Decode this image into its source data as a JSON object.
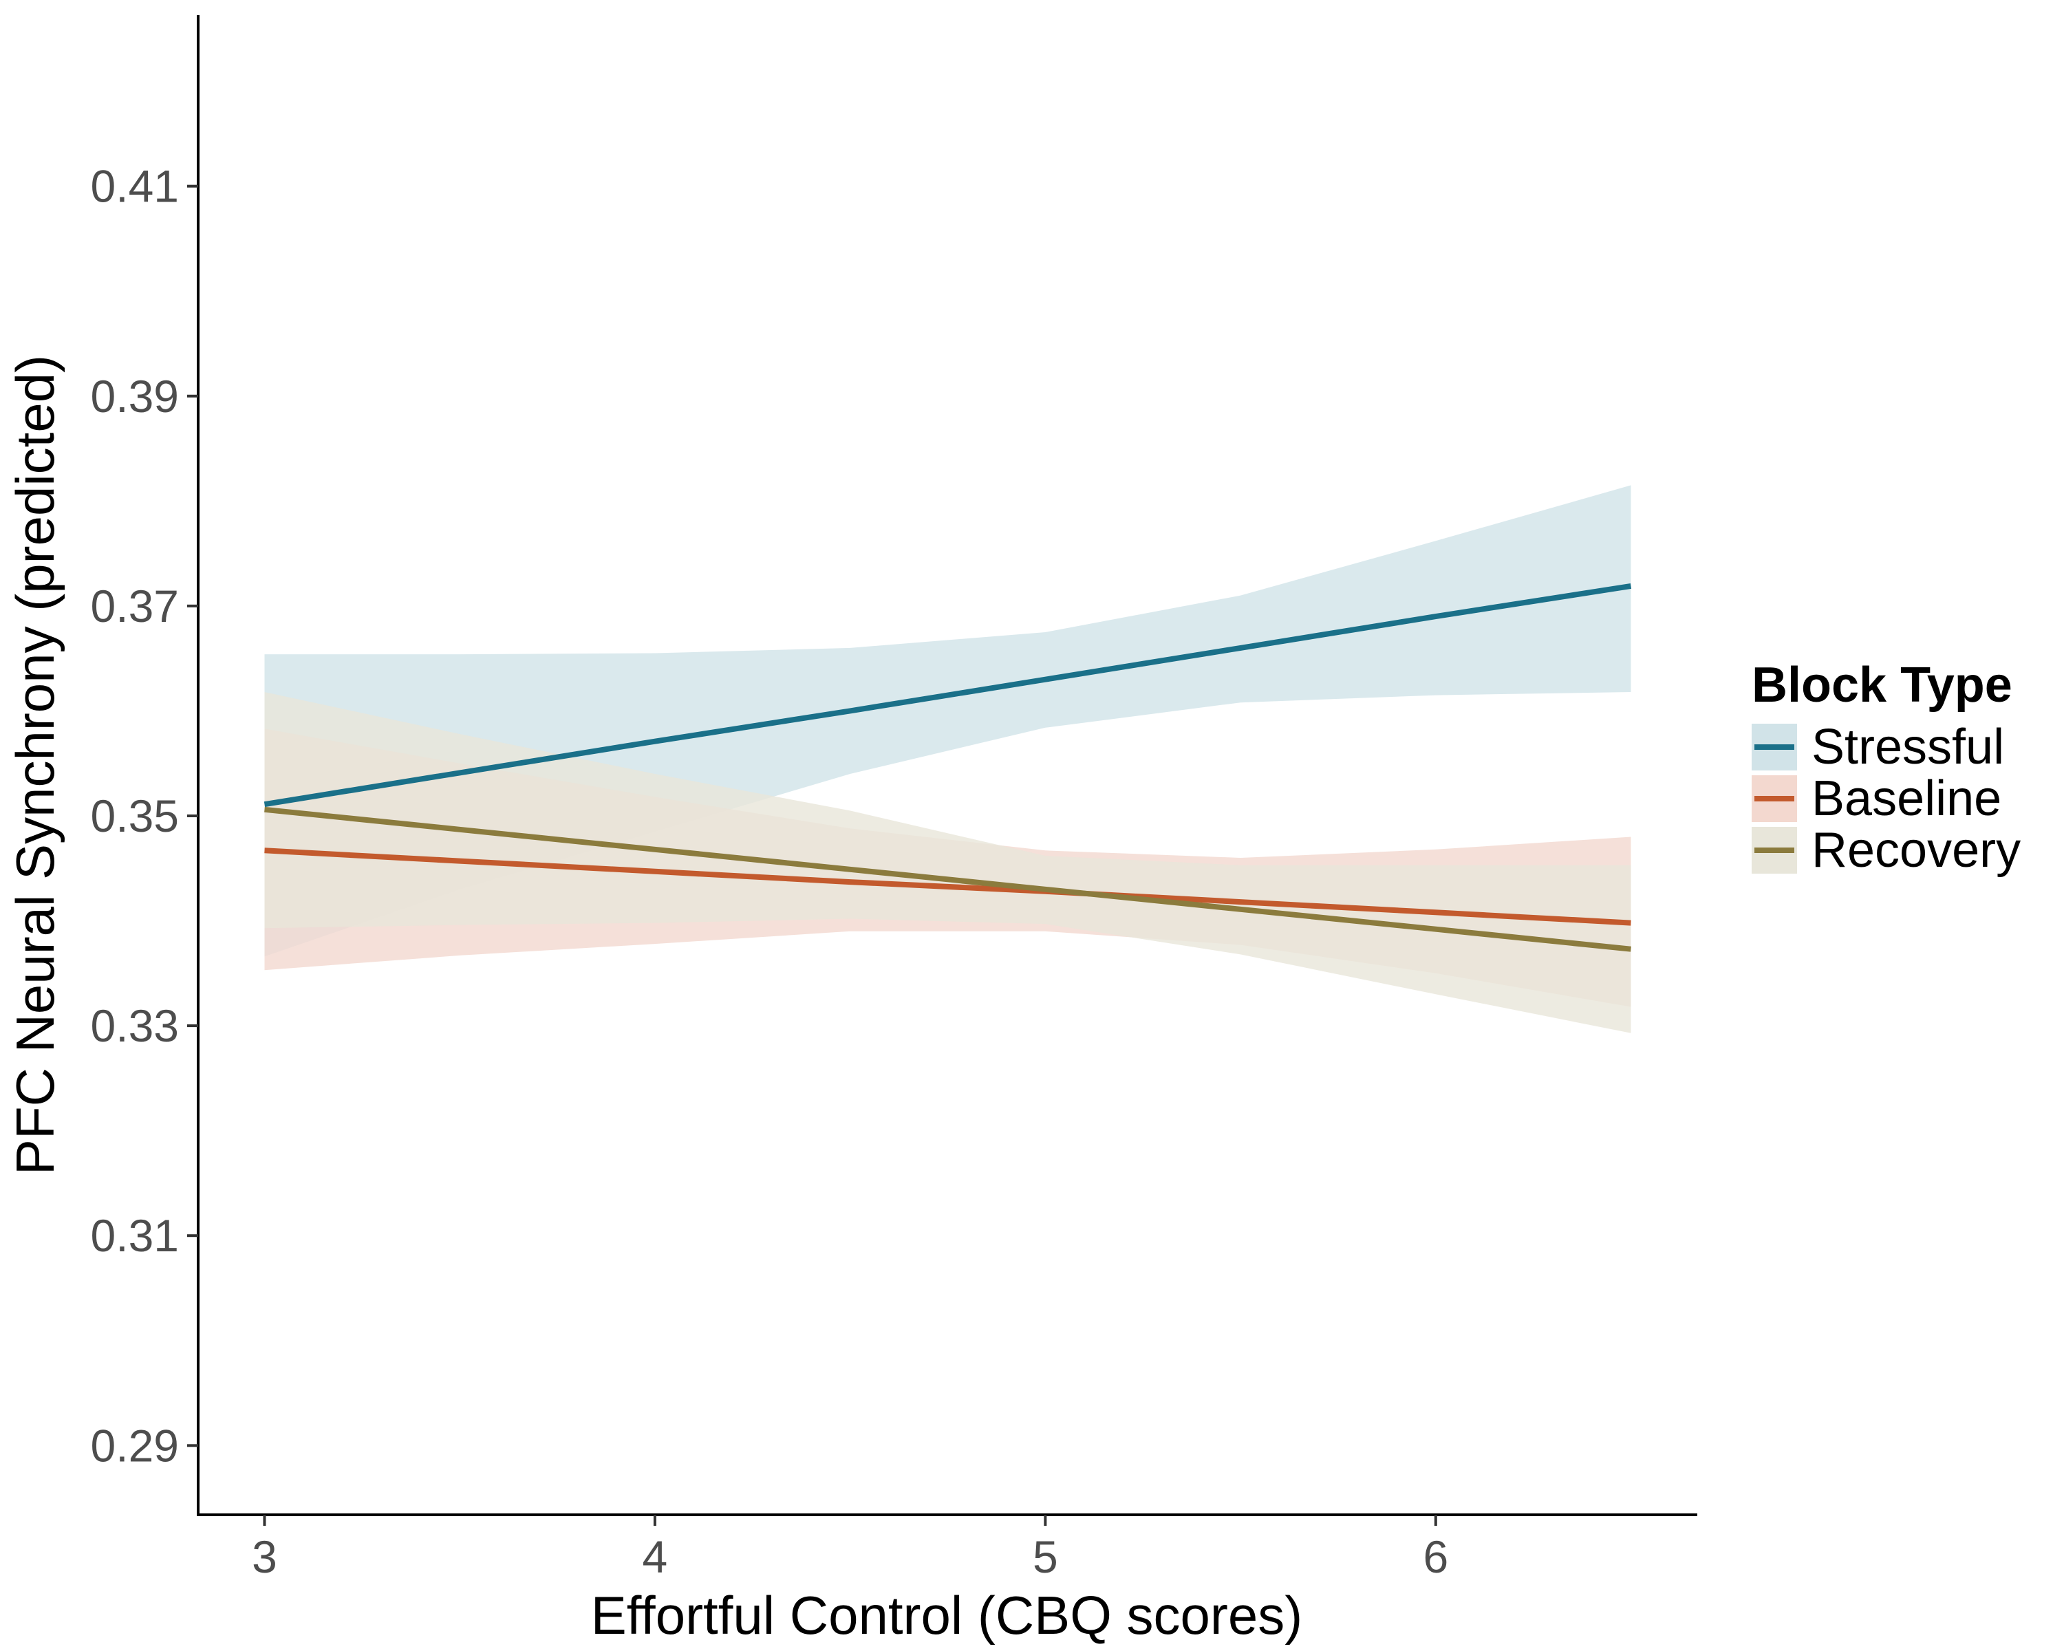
{
  "chart_data": {
    "type": "line",
    "title": "",
    "xlabel": "Effortful Control (CBQ scores)",
    "ylabel": "PFC Neural Synchrony (predicted)",
    "xlim": [
      2.83,
      6.67
    ],
    "ylim": [
      0.2834,
      0.4263
    ],
    "x_ticks": [
      3,
      4,
      5,
      6
    ],
    "y_ticks": [
      0.29,
      0.31,
      0.33,
      0.35,
      0.37,
      0.39,
      0.41
    ],
    "x_tick_labels": [
      "3",
      "4",
      "5",
      "6"
    ],
    "y_tick_labels": [
      "0.29",
      "0.31",
      "0.33",
      "0.35",
      "0.37",
      "0.39",
      "0.41"
    ],
    "grid": false,
    "legend": {
      "title": "Block Type",
      "position": "right"
    },
    "x": [
      3,
      3.5,
      4,
      4.5,
      5,
      5.5,
      6,
      6.5
    ],
    "series": [
      {
        "name": "Stressful",
        "color": "#1a7089",
        "band_color": "#d1e3e8",
        "values": [
          0.3511,
          0.3541,
          0.3571,
          0.36,
          0.363,
          0.366,
          0.369,
          0.3719
        ],
        "lower": [
          0.3366,
          0.343,
          0.3485,
          0.354,
          0.3584,
          0.3608,
          0.3615,
          0.3618
        ],
        "upper": [
          0.3654,
          0.3654,
          0.3655,
          0.366,
          0.3675,
          0.371,
          0.3762,
          0.3815
        ]
      },
      {
        "name": "Baseline",
        "color": "#c35a2d",
        "band_color": "#f3d8cf",
        "values": [
          0.3467,
          0.3457,
          0.3447,
          0.3437,
          0.3428,
          0.3418,
          0.3408,
          0.3398
        ],
        "lower": [
          0.3353,
          0.3367,
          0.3378,
          0.339,
          0.339,
          0.3377,
          0.335,
          0.3318
        ],
        "upper": [
          0.3583,
          0.355,
          0.3518,
          0.3488,
          0.3467,
          0.346,
          0.3468,
          0.348
        ]
      },
      {
        "name": "Recovery",
        "color": "#8b7b3d",
        "band_color": "#e8e6da",
        "values": [
          0.3506,
          0.3487,
          0.3468,
          0.3449,
          0.343,
          0.3411,
          0.3392,
          0.3373
        ],
        "lower": [
          0.3393,
          0.3396,
          0.3398,
          0.3402,
          0.3397,
          0.3368,
          0.333,
          0.3293
        ],
        "upper": [
          0.3618,
          0.3578,
          0.354,
          0.3505,
          0.3462,
          0.3453,
          0.3453,
          0.3453
        ]
      }
    ]
  }
}
